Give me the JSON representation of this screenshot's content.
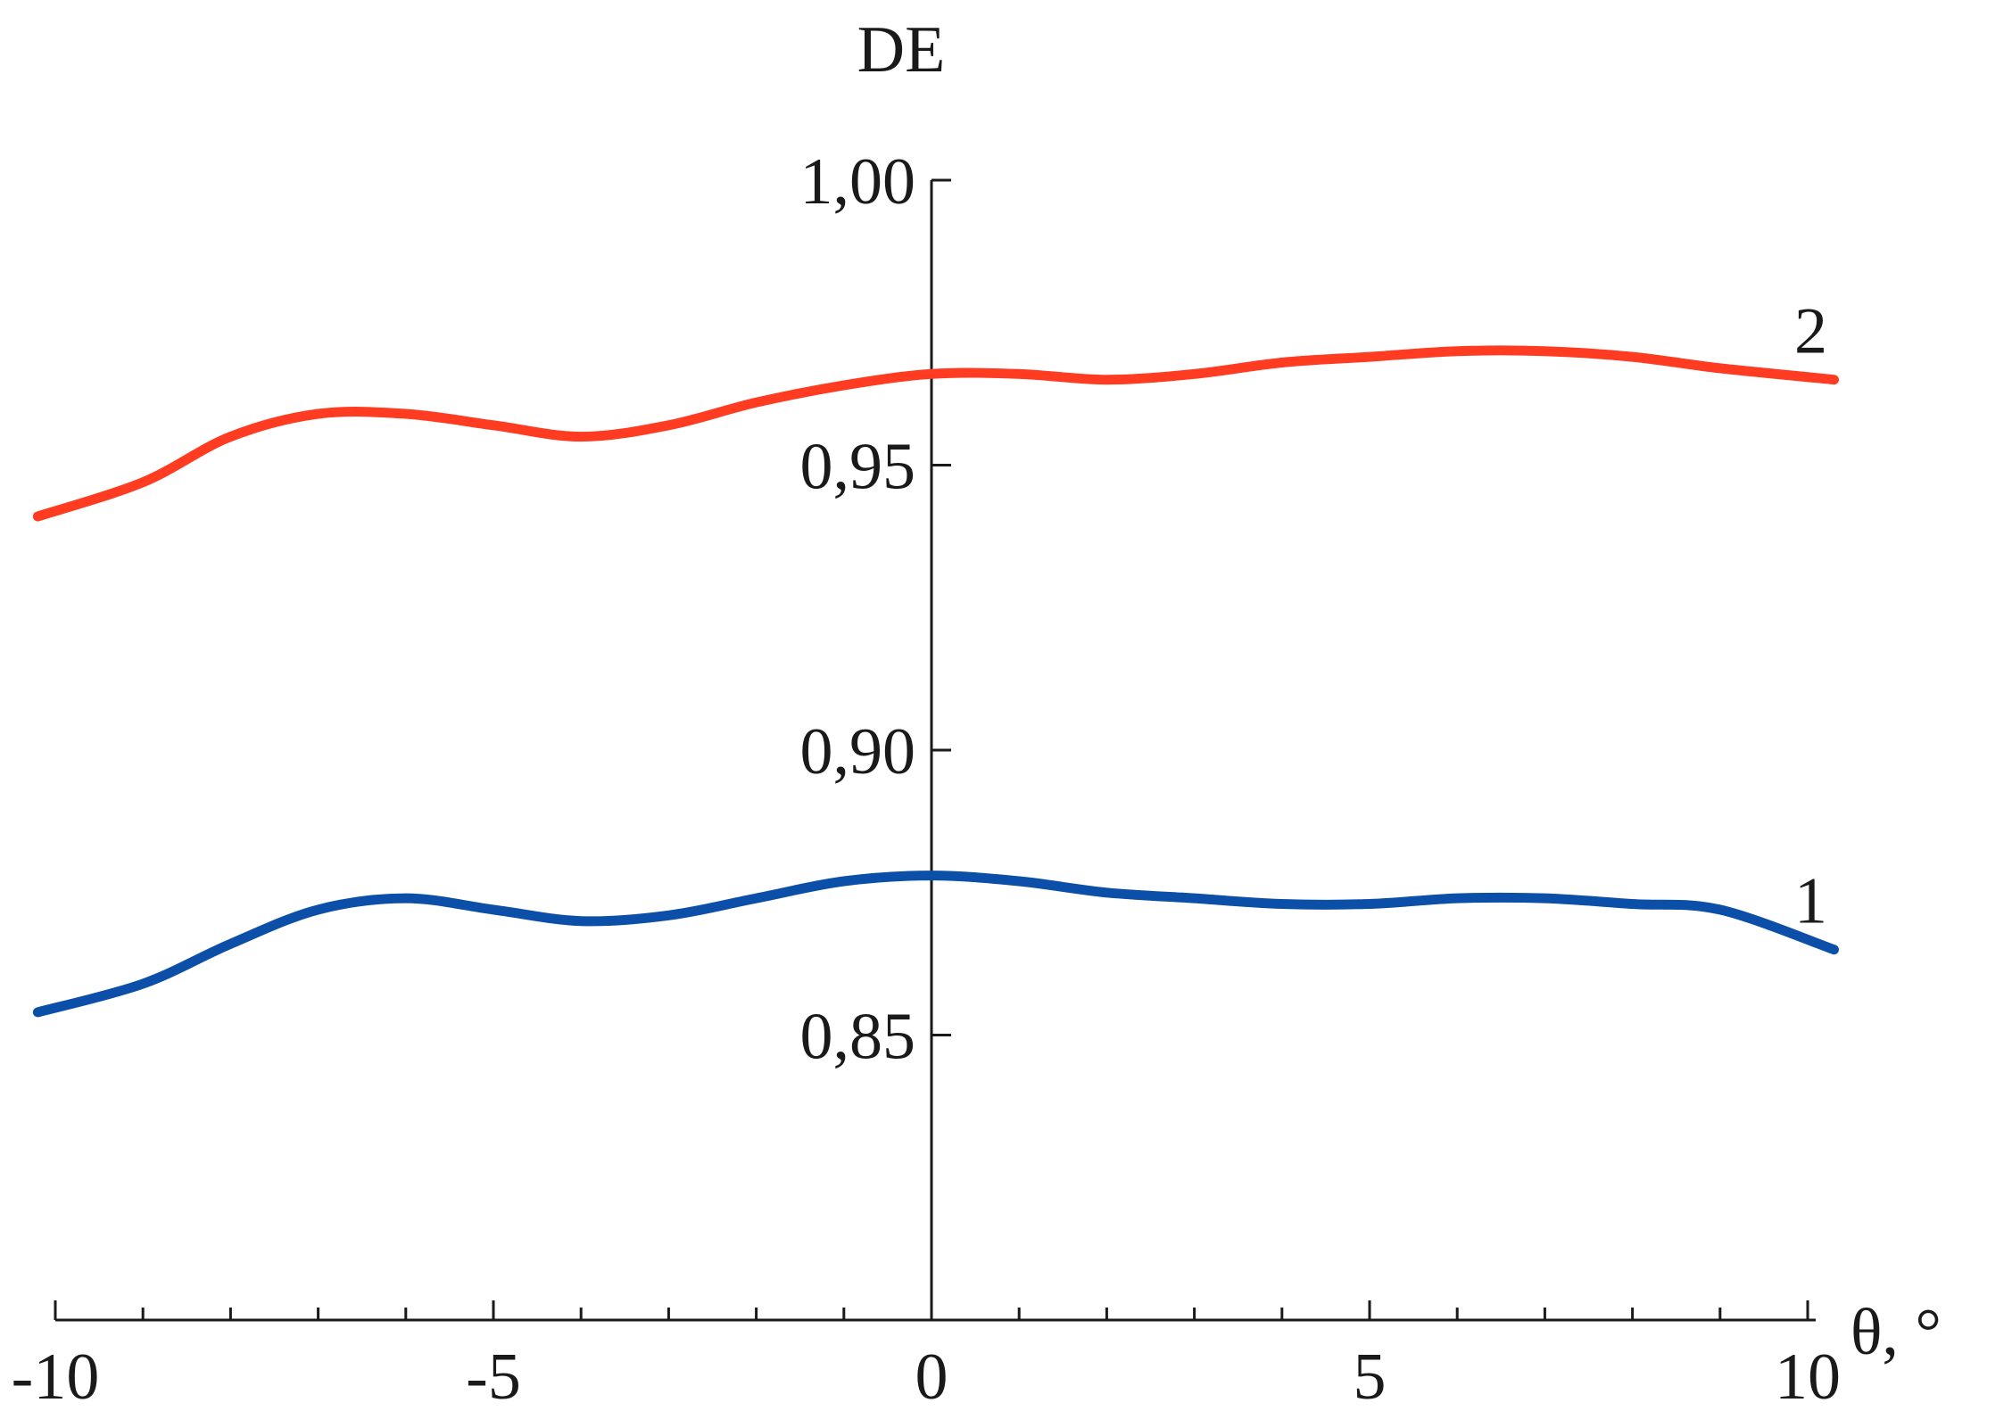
{
  "chart_data": {
    "type": "line",
    "title": "",
    "xlabel": "θ, °",
    "ylabel": "DE",
    "xlim": [
      -10,
      10
    ],
    "ylim": [
      0.8,
      1.0
    ],
    "grid": false,
    "x_ticks": [
      -10,
      -5,
      0,
      5,
      10
    ],
    "x_tick_labels": [
      "-10",
      "-5",
      "0",
      "5",
      "10"
    ],
    "x_minor_step": 1,
    "y_ticks": [
      0.85,
      0.9,
      0.95,
      1.0
    ],
    "y_tick_labels": [
      "0,85",
      "0,90",
      "0,95",
      "1,00"
    ],
    "series": [
      {
        "label": "1",
        "color": "#0b4fa8",
        "x": [
          -10.2,
          -9,
          -8,
          -7,
          -6,
          -5,
          -4,
          -3,
          -2,
          -1,
          0,
          1,
          2,
          3,
          4,
          5,
          6,
          7,
          8,
          9,
          10.3
        ],
        "y": [
          0.854,
          0.859,
          0.866,
          0.872,
          0.874,
          0.872,
          0.87,
          0.871,
          0.874,
          0.877,
          0.878,
          0.877,
          0.875,
          0.874,
          0.873,
          0.873,
          0.874,
          0.874,
          0.873,
          0.872,
          0.865
        ]
      },
      {
        "label": "2",
        "color": "#ff3b22",
        "x": [
          -10.2,
          -9,
          -8,
          -7,
          -6,
          -5,
          -4,
          -3,
          -2,
          -1,
          0,
          1,
          2,
          3,
          4,
          5,
          6,
          7,
          8,
          9,
          10.3
        ],
        "y": [
          0.941,
          0.947,
          0.955,
          0.959,
          0.959,
          0.957,
          0.955,
          0.957,
          0.961,
          0.964,
          0.966,
          0.966,
          0.965,
          0.966,
          0.968,
          0.969,
          0.97,
          0.97,
          0.969,
          0.967,
          0.965
        ]
      }
    ]
  }
}
